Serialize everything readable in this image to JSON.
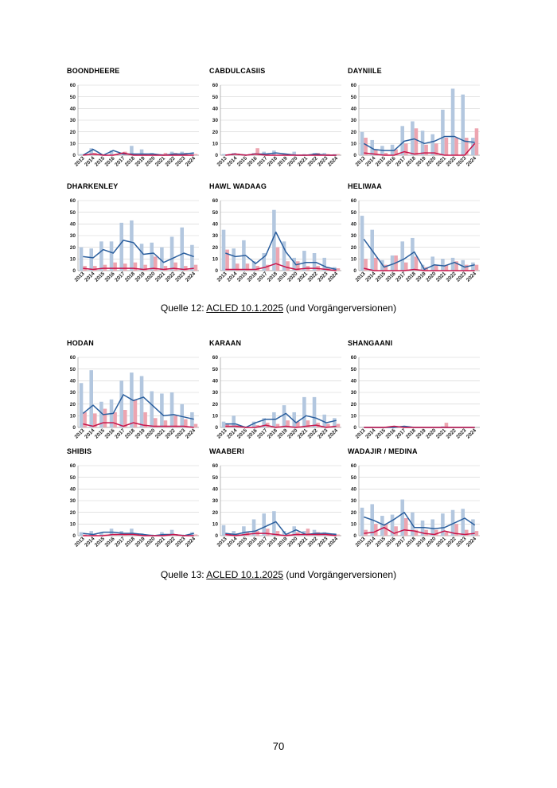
{
  "page_number": "70",
  "captions": [
    {
      "prefix": "Quelle 12: ",
      "source": "ACLED 10.1.2025",
      "suffix": " (und Vorgängerversionen)"
    },
    {
      "prefix": "Quelle 13: ",
      "source": "ACLED 10.1.2025",
      "suffix": " (und Vorgängerversionen)"
    }
  ],
  "colors": {
    "bar_blue": "#b3c7df",
    "bar_pink": "#eda5b0",
    "line_blue": "#2b5f9e",
    "line_red": "#c8154b",
    "grid": "#d0d0d0"
  },
  "chart_data": [
    {
      "type": "bar",
      "title": "BOONDHEERE",
      "categories": [
        "2013",
        "2014",
        "2015",
        "2016",
        "2017",
        "2018",
        "2019",
        "2020",
        "2021",
        "2022",
        "2023",
        "2024"
      ],
      "ylim": [
        0,
        60
      ],
      "yticks": [
        "0",
        "10",
        "20",
        "30",
        "40",
        "50",
        "60"
      ],
      "series": [
        {
          "name": "bars_blue",
          "values": [
            1,
            6,
            1,
            4,
            2,
            8,
            5,
            2,
            1,
            3,
            3,
            2
          ]
        },
        {
          "name": "bars_pink",
          "values": [
            0,
            2,
            0,
            1,
            3,
            1,
            1,
            1,
            2,
            2,
            2,
            1
          ]
        },
        {
          "name": "line_blue",
          "values": [
            0,
            5,
            0,
            4,
            1,
            1,
            1,
            1,
            0,
            1,
            1,
            2
          ]
        },
        {
          "name": "line_red",
          "values": [
            0,
            1,
            0,
            0,
            2,
            0,
            0,
            0,
            0,
            0,
            0,
            0
          ]
        }
      ]
    },
    {
      "type": "bar",
      "title": "CABDULCASIIS",
      "categories": [
        "2013",
        "2014",
        "2015",
        "2016",
        "2017",
        "2018",
        "2019",
        "2020",
        "2021",
        "2022",
        "2023",
        "2024"
      ],
      "ylim": [
        0,
        60
      ],
      "yticks": [
        "0",
        "10",
        "20",
        "30",
        "40",
        "50",
        "60"
      ],
      "series": [
        {
          "name": "bars_blue",
          "values": [
            1,
            2,
            1,
            2,
            3,
            4,
            1,
            3,
            1,
            2,
            2,
            1
          ]
        },
        {
          "name": "bars_pink",
          "values": [
            0,
            1,
            0,
            6,
            1,
            0,
            0,
            0,
            0,
            2,
            1,
            1
          ]
        },
        {
          "name": "line_blue",
          "values": [
            0,
            1,
            0,
            1,
            1,
            2,
            1,
            0,
            0,
            1,
            0,
            0
          ]
        },
        {
          "name": "line_red",
          "values": [
            0,
            1,
            0,
            1,
            0,
            0,
            0,
            0,
            0,
            0,
            0,
            0
          ]
        }
      ]
    },
    {
      "type": "bar",
      "title": "DAYNIILE",
      "categories": [
        "2013",
        "2014",
        "2015",
        "2016",
        "2017",
        "2018",
        "2019",
        "2020",
        "2021",
        "2022",
        "2023",
        "2024"
      ],
      "ylim": [
        0,
        60
      ],
      "yticks": [
        "0",
        "10",
        "20",
        "30",
        "40",
        "50",
        "60"
      ],
      "series": [
        {
          "name": "bars_blue",
          "values": [
            20,
            13,
            8,
            9,
            25,
            29,
            21,
            18,
            39,
            57,
            52,
            15
          ]
        },
        {
          "name": "bars_pink",
          "values": [
            15,
            5,
            2,
            5,
            10,
            23,
            9,
            10,
            15,
            15,
            15,
            23
          ]
        },
        {
          "name": "line_blue",
          "values": [
            10,
            5,
            4,
            4,
            12,
            14,
            10,
            12,
            16,
            16,
            12,
            11
          ]
        },
        {
          "name": "line_red",
          "values": [
            2,
            1,
            0,
            0,
            3,
            1,
            2,
            2,
            0,
            0,
            0,
            10
          ]
        }
      ]
    },
    {
      "type": "bar",
      "title": "DHARKENLEY",
      "categories": [
        "2013",
        "2014",
        "2015",
        "2016",
        "2017",
        "2018",
        "2019",
        "2020",
        "2021",
        "2022",
        "2023",
        "2024"
      ],
      "ylim": [
        0,
        60
      ],
      "yticks": [
        "0",
        "10",
        "20",
        "30",
        "40",
        "50",
        "60"
      ],
      "series": [
        {
          "name": "bars_blue",
          "values": [
            20,
            19,
            25,
            25,
            41,
            43,
            23,
            24,
            20,
            29,
            37,
            22
          ]
        },
        {
          "name": "bars_pink",
          "values": [
            4,
            4,
            5,
            7,
            6,
            7,
            5,
            12,
            4,
            7,
            4,
            5
          ]
        },
        {
          "name": "line_blue",
          "values": [
            12,
            11,
            18,
            15,
            26,
            24,
            14,
            15,
            7,
            11,
            15,
            12
          ]
        },
        {
          "name": "line_red",
          "values": [
            2,
            1,
            2,
            2,
            2,
            2,
            1,
            2,
            1,
            2,
            1,
            2
          ]
        }
      ]
    },
    {
      "type": "bar",
      "title": "HAWL WADAAG",
      "categories": [
        "2013",
        "2014",
        "2015",
        "2016",
        "2017",
        "2018",
        "2019",
        "2020",
        "2021",
        "2022",
        "2023",
        "2024"
      ],
      "ylim": [
        0,
        60
      ],
      "yticks": [
        "0",
        "10",
        "20",
        "30",
        "40",
        "50",
        "60"
      ],
      "series": [
        {
          "name": "bars_blue",
          "values": [
            35,
            19,
            26,
            8,
            15,
            52,
            25,
            11,
            17,
            15,
            11,
            3
          ]
        },
        {
          "name": "bars_pink",
          "values": [
            18,
            6,
            6,
            4,
            5,
            20,
            8,
            8,
            4,
            4,
            3,
            2
          ]
        },
        {
          "name": "line_blue",
          "values": [
            15,
            12,
            13,
            6,
            13,
            33,
            16,
            5,
            7,
            7,
            3,
            1
          ]
        },
        {
          "name": "line_red",
          "values": [
            1,
            1,
            1,
            1,
            3,
            6,
            3,
            1,
            2,
            2,
            1,
            0
          ]
        }
      ]
    },
    {
      "type": "bar",
      "title": "HELIWAA",
      "categories": [
        "2013",
        "2014",
        "2015",
        "2016",
        "2017",
        "2018",
        "2019",
        "2020",
        "2021",
        "2022",
        "2023",
        "2024"
      ],
      "ylim": [
        0,
        60
      ],
      "yticks": [
        "0",
        "10",
        "20",
        "30",
        "40",
        "50",
        "60"
      ],
      "series": [
        {
          "name": "bars_blue",
          "values": [
            47,
            35,
            9,
            13,
            25,
            28,
            5,
            12,
            10,
            11,
            9,
            7
          ]
        },
        {
          "name": "bars_pink",
          "values": [
            10,
            11,
            5,
            13,
            7,
            12,
            3,
            5,
            5,
            8,
            5,
            5
          ]
        },
        {
          "name": "line_blue",
          "values": [
            27,
            15,
            3,
            6,
            10,
            16,
            1,
            5,
            4,
            7,
            3,
            5
          ]
        },
        {
          "name": "line_red",
          "values": [
            2,
            0,
            0,
            0,
            0,
            1,
            0,
            0,
            0,
            0,
            0,
            0
          ]
        }
      ]
    },
    {
      "type": "bar",
      "title": "HODAN",
      "categories": [
        "2013",
        "2014",
        "2015",
        "2016",
        "2017",
        "2018",
        "2019",
        "2020",
        "2021",
        "2022",
        "2023",
        "2024"
      ],
      "ylim": [
        0,
        60
      ],
      "yticks": [
        "0",
        "10",
        "20",
        "30",
        "40",
        "50",
        "60"
      ],
      "series": [
        {
          "name": "bars_blue",
          "values": [
            38,
            49,
            22,
            24,
            40,
            47,
            44,
            31,
            29,
            30,
            20,
            13
          ]
        },
        {
          "name": "bars_pink",
          "values": [
            13,
            12,
            16,
            13,
            15,
            24,
            13,
            8,
            6,
            10,
            7,
            3
          ]
        },
        {
          "name": "line_blue",
          "values": [
            12,
            19,
            11,
            12,
            28,
            23,
            26,
            18,
            10,
            11,
            9,
            7
          ]
        },
        {
          "name": "line_red",
          "values": [
            3,
            1,
            4,
            4,
            1,
            4,
            2,
            1,
            1,
            1,
            1,
            0
          ]
        }
      ]
    },
    {
      "type": "bar",
      "title": "KARAAN",
      "categories": [
        "2013",
        "2014",
        "2015",
        "2016",
        "2017",
        "2018",
        "2019",
        "2020",
        "2021",
        "2022",
        "2023",
        "2024"
      ],
      "ylim": [
        0,
        60
      ],
      "yticks": [
        "0",
        "10",
        "20",
        "30",
        "40",
        "50",
        "60"
      ],
      "series": [
        {
          "name": "bars_blue",
          "values": [
            5,
            10,
            1,
            5,
            8,
            13,
            19,
            13,
            26,
            26,
            11,
            8
          ]
        },
        {
          "name": "bars_pink",
          "values": [
            3,
            2,
            0,
            2,
            4,
            3,
            6,
            5,
            6,
            4,
            3,
            3
          ]
        },
        {
          "name": "line_blue",
          "values": [
            3,
            3,
            0,
            4,
            7,
            7,
            12,
            4,
            10,
            8,
            4,
            6
          ]
        },
        {
          "name": "line_red",
          "values": [
            1,
            1,
            0,
            0,
            2,
            0,
            1,
            0,
            1,
            2,
            0,
            1
          ]
        }
      ]
    },
    {
      "type": "bar",
      "title": "SHANGAANI",
      "categories": [
        "2013",
        "2014",
        "2015",
        "2016",
        "2017",
        "2018",
        "2019",
        "2020",
        "2021",
        "2022",
        "2023",
        "2024"
      ],
      "ylim": [
        0,
        60
      ],
      "yticks": [
        "0",
        "10",
        "20",
        "30",
        "40",
        "50",
        "60"
      ],
      "series": [
        {
          "name": "bars_blue",
          "values": [
            0,
            0,
            0,
            1,
            1,
            0,
            0,
            0,
            1,
            0,
            0,
            0
          ]
        },
        {
          "name": "bars_pink",
          "values": [
            0,
            0,
            0,
            0,
            0,
            0,
            0,
            0,
            4,
            0,
            0,
            0
          ]
        },
        {
          "name": "line_blue",
          "values": [
            0,
            0,
            0,
            0,
            1,
            0,
            0,
            0,
            0,
            0,
            0,
            0
          ]
        },
        {
          "name": "line_red",
          "values": [
            0,
            0,
            0,
            1,
            0,
            0,
            0,
            0,
            0,
            0,
            0,
            0
          ]
        }
      ]
    },
    {
      "type": "bar",
      "title": "SHIBIS",
      "categories": [
        "2013",
        "2014",
        "2015",
        "2016",
        "2017",
        "2018",
        "2019",
        "2020",
        "2021",
        "2022",
        "2023",
        "2024"
      ],
      "ylim": [
        0,
        60
      ],
      "yticks": [
        "0",
        "10",
        "20",
        "30",
        "40",
        "50",
        "60"
      ],
      "series": [
        {
          "name": "bars_blue",
          "values": [
            3,
            4,
            3,
            6,
            4,
            6,
            2,
            1,
            3,
            5,
            1,
            3
          ]
        },
        {
          "name": "bars_pink",
          "values": [
            1,
            1,
            1,
            1,
            1,
            2,
            1,
            0,
            1,
            1,
            0,
            1
          ]
        },
        {
          "name": "line_blue",
          "values": [
            2,
            1,
            3,
            3,
            2,
            2,
            1,
            0,
            1,
            1,
            0,
            2
          ]
        },
        {
          "name": "line_red",
          "values": [
            0,
            0,
            0,
            1,
            1,
            1,
            0,
            0,
            0,
            1,
            0,
            0
          ]
        }
      ]
    },
    {
      "type": "bar",
      "title": "WAABERI",
      "categories": [
        "2013",
        "2014",
        "2015",
        "2016",
        "2017",
        "2018",
        "2019",
        "2020",
        "2021",
        "2022",
        "2023",
        "2024"
      ],
      "ylim": [
        0,
        60
      ],
      "yticks": [
        "0",
        "10",
        "20",
        "30",
        "40",
        "50",
        "60"
      ],
      "series": [
        {
          "name": "bars_blue",
          "values": [
            9,
            4,
            8,
            14,
            19,
            21,
            4,
            8,
            4,
            5,
            3,
            2
          ]
        },
        {
          "name": "bars_pink",
          "values": [
            2,
            2,
            3,
            4,
            6,
            4,
            2,
            3,
            6,
            3,
            2,
            1
          ]
        },
        {
          "name": "line_blue",
          "values": [
            2,
            1,
            3,
            4,
            8,
            12,
            1,
            5,
            1,
            2,
            2,
            1
          ]
        },
        {
          "name": "line_red",
          "values": [
            1,
            0,
            1,
            2,
            2,
            1,
            0,
            1,
            1,
            1,
            1,
            0
          ]
        }
      ]
    },
    {
      "type": "bar",
      "title": "WADAJIR / MEDINA",
      "categories": [
        "2013",
        "2014",
        "2015",
        "2016",
        "2017",
        "2018",
        "2019",
        "2020",
        "2021",
        "2022",
        "2023",
        "2024"
      ],
      "ylim": [
        0,
        60
      ],
      "yticks": [
        "0",
        "10",
        "20",
        "30",
        "40",
        "50",
        "60"
      ],
      "series": [
        {
          "name": "bars_blue",
          "values": [
            24,
            27,
            17,
            18,
            31,
            20,
            13,
            14,
            19,
            22,
            23,
            14
          ]
        },
        {
          "name": "bars_pink",
          "values": [
            5,
            10,
            10,
            8,
            15,
            5,
            5,
            5,
            3,
            10,
            5,
            4
          ]
        },
        {
          "name": "line_blue",
          "values": [
            16,
            13,
            9,
            14,
            20,
            7,
            7,
            6,
            7,
            11,
            15,
            9
          ]
        },
        {
          "name": "line_red",
          "values": [
            2,
            3,
            7,
            2,
            5,
            4,
            2,
            1,
            4,
            2,
            1,
            2
          ]
        }
      ]
    }
  ]
}
